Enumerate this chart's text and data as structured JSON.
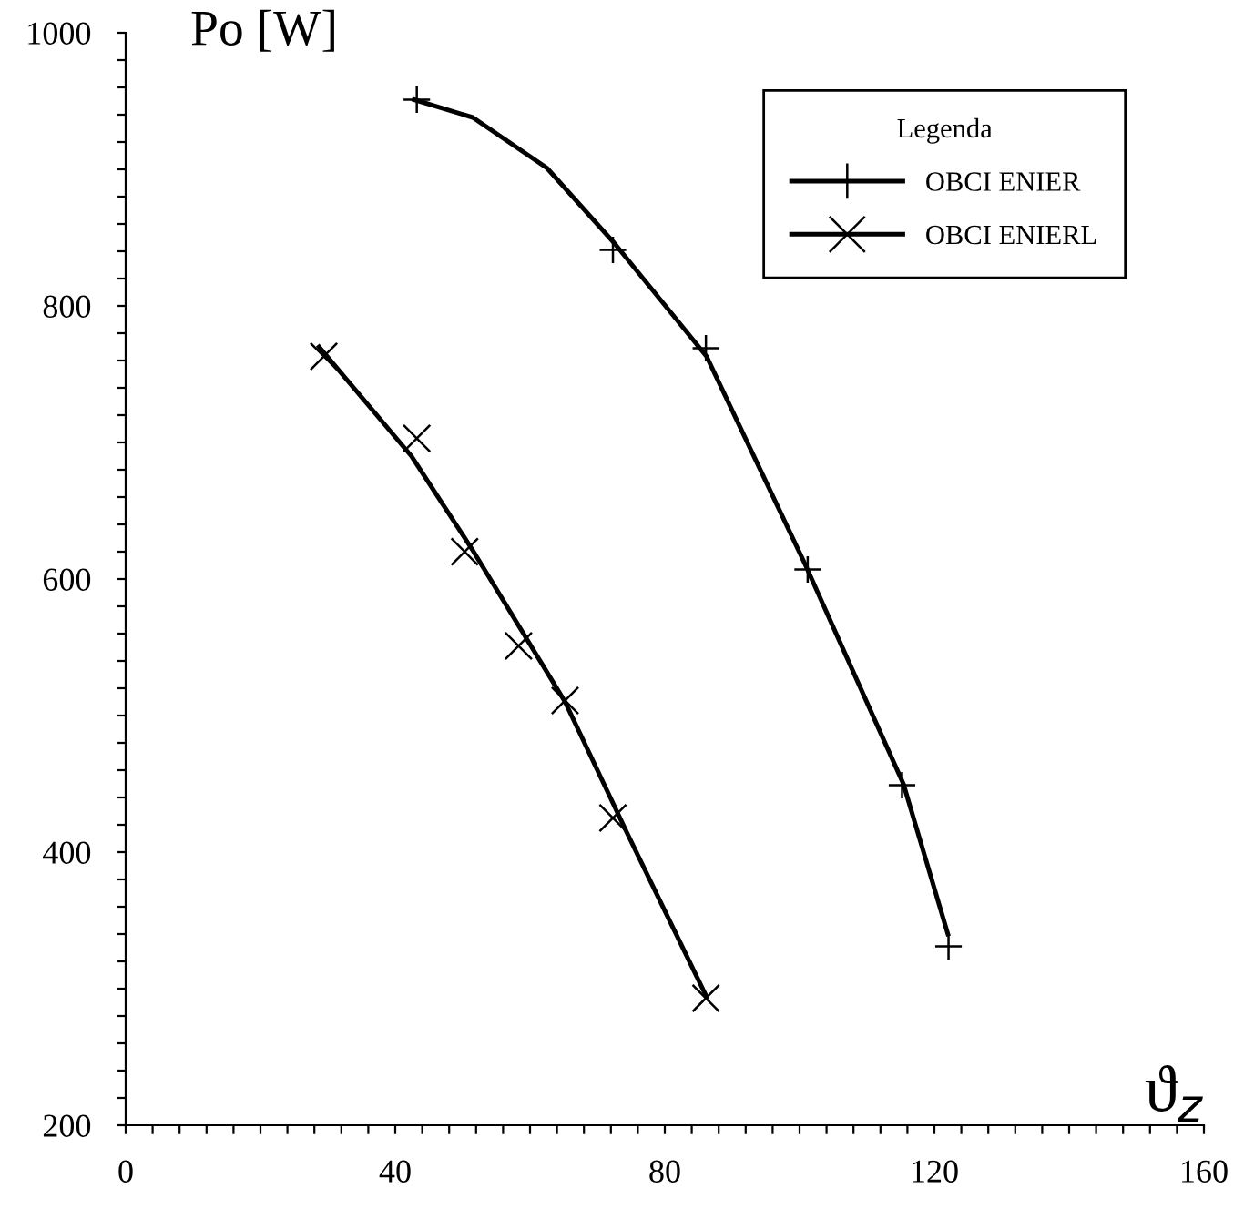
{
  "chart_data": {
    "type": "scatter",
    "ylabel": "Po [W]",
    "xlabel": "ϑ$_{z}$",
    "legend_title": "Legenda",
    "legend": "top right",
    "grid": false,
    "xlim": [
      0,
      160
    ],
    "ylim": [
      200,
      1000
    ],
    "xticks": [
      0,
      {
        "value": 4,
        "label": null
      },
      {
        "value": 8,
        "label": null
      },
      {
        "value": 12,
        "label": null
      },
      {
        "value": 16,
        "label": null
      },
      {
        "value": 20,
        "label": null
      },
      {
        "value": 24,
        "label": null
      },
      {
        "value": 28,
        "label": null
      },
      {
        "value": 32,
        "label": null
      },
      {
        "value": 36,
        "label": null
      },
      40,
      {
        "value": 44,
        "label": null
      },
      {
        "value": 48,
        "label": null
      },
      {
        "value": 52,
        "label": null
      },
      {
        "value": 56,
        "label": null
      },
      {
        "value": 60,
        "label": null
      },
      {
        "value": 64,
        "label": null
      },
      {
        "value": 68,
        "label": null
      },
      {
        "value": 72,
        "label": null
      },
      {
        "value": 76,
        "label": null
      },
      80,
      {
        "value": 84,
        "label": null
      },
      {
        "value": 88,
        "label": null
      },
      {
        "value": 92,
        "label": null
      },
      {
        "value": 96,
        "label": null
      },
      {
        "value": 100,
        "label": null
      },
      {
        "value": 104,
        "label": null
      },
      {
        "value": 108,
        "label": null
      },
      {
        "value": 112,
        "label": null
      },
      {
        "value": 116,
        "label": null
      },
      120,
      {
        "value": 124,
        "label": null
      },
      {
        "value": 128,
        "label": null
      },
      {
        "value": 132,
        "label": null
      },
      {
        "value": 136,
        "label": null
      },
      {
        "value": 140,
        "label": null
      },
      {
        "value": 144,
        "label": null
      },
      {
        "value": 148,
        "label": null
      },
      {
        "value": 152,
        "label": null
      },
      {
        "value": 156,
        "label": null
      },
      160
    ],
    "yticks": [
      200,
      {
        "value": 220,
        "label": null
      },
      {
        "value": 240,
        "label": null
      },
      {
        "value": 260,
        "label": null
      },
      {
        "value": 280,
        "label": null
      },
      {
        "value": 300,
        "label": null
      },
      {
        "value": 320,
        "label": null
      },
      {
        "value": 340,
        "label": null
      },
      {
        "value": 360,
        "label": null
      },
      {
        "value": 380,
        "label": null
      },
      400,
      {
        "value": 420,
        "label": null
      },
      {
        "value": 440,
        "label": null
      },
      {
        "value": 460,
        "label": null
      },
      {
        "value": 480,
        "label": null
      },
      {
        "value": 500,
        "label": null
      },
      {
        "value": 520,
        "label": null
      },
      {
        "value": 540,
        "label": null
      },
      {
        "value": 560,
        "label": null
      },
      {
        "value": 580,
        "label": null
      },
      600,
      {
        "value": 620,
        "label": null
      },
      {
        "value": 640,
        "label": null
      },
      {
        "value": 660,
        "label": null
      },
      {
        "value": 680,
        "label": null
      },
      {
        "value": 700,
        "label": null
      },
      {
        "value": 720,
        "label": null
      },
      {
        "value": 740,
        "label": null
      },
      {
        "value": 760,
        "label": null
      },
      {
        "value": 780,
        "label": null
      },
      800,
      {
        "value": 820,
        "label": null
      },
      {
        "value": 840,
        "label": null
      },
      {
        "value": 860,
        "label": null
      },
      {
        "value": 880,
        "label": null
      },
      {
        "value": 900,
        "label": null
      },
      {
        "value": 920,
        "label": null
      },
      {
        "value": 940,
        "label": null
      },
      {
        "value": 960,
        "label": null
      },
      {
        "value": 980,
        "label": null
      },
      1000
    ],
    "series": [
      {
        "type": "line",
        "color": "#000000",
        "marker": "none",
        "line_style": "solid",
        "x": [
          42.8,
          51.5,
          62.5,
          72.5,
          86.2,
          100.8,
          115.4,
          122.0
        ],
        "values": [
          951,
          938,
          901,
          846,
          763,
          611,
          450,
          340
        ]
      },
      {
        "type": "line",
        "color": "#000000",
        "marker": "none",
        "line_style": "solid",
        "x": [
          28.7,
          42.4,
          51.5,
          65.2,
          74.4,
          86.2
        ],
        "values": [
          770,
          690,
          621,
          510,
          414,
          294
        ]
      },
      {
        "name": "OBCI ENIER",
        "color": "#000000",
        "marker": "plus",
        "x": [
          43.2,
          72.3,
          86.1,
          101.2,
          115.2,
          122.1
        ],
        "values": [
          951,
          841,
          769,
          607,
          449,
          331
        ]
      },
      {
        "name": "OBCI ENIERL",
        "color": "#000000",
        "marker": "x",
        "x": [
          29.4,
          43.2,
          50.3,
          58.3,
          65.2,
          72.3,
          86.1
        ],
        "values": [
          763,
          703,
          620,
          551,
          511,
          425,
          293
        ]
      }
    ]
  }
}
